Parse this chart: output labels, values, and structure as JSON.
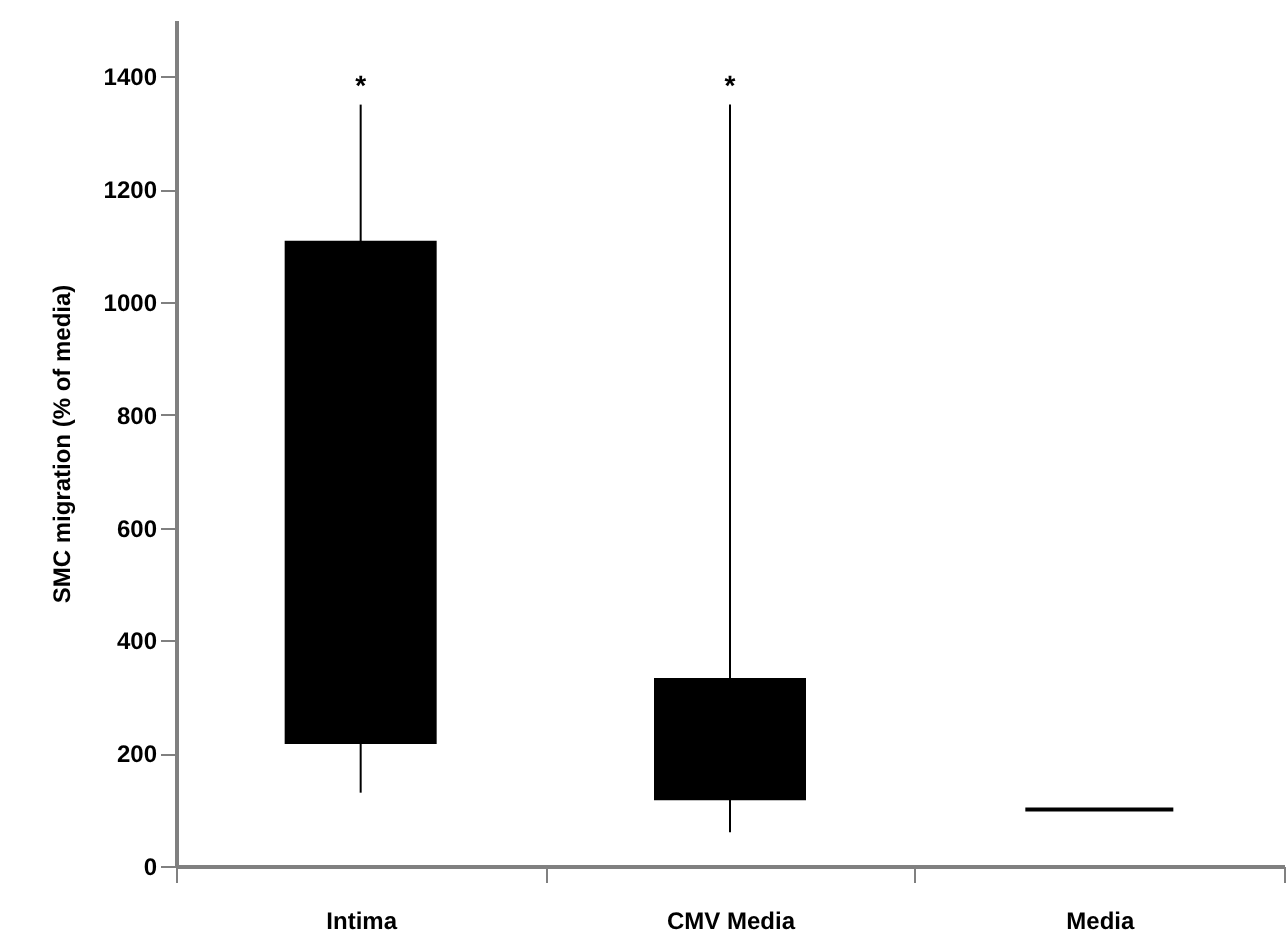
{
  "chart_data": {
    "type": "box",
    "ylabel": "SMC migration (% of media)",
    "categories": [
      "Intima",
      "CMV Media",
      "Media"
    ],
    "series": [
      {
        "color": "#000000",
        "boxes": [
          {
            "low": 130,
            "q1": 220,
            "q3": 1105,
            "high": 1350
          },
          {
            "low": 60,
            "q1": 120,
            "q3": 330,
            "high": 1350
          },
          {
            "low": 100,
            "q1": 100,
            "q3": 100,
            "high": 100
          }
        ]
      }
    ],
    "ylim": [
      0,
      1500
    ],
    "yticks": [
      0,
      200,
      400,
      600,
      800,
      1000,
      1200,
      1400
    ],
    "annotations": [
      "*",
      "*"
    ],
    "grid": false
  }
}
